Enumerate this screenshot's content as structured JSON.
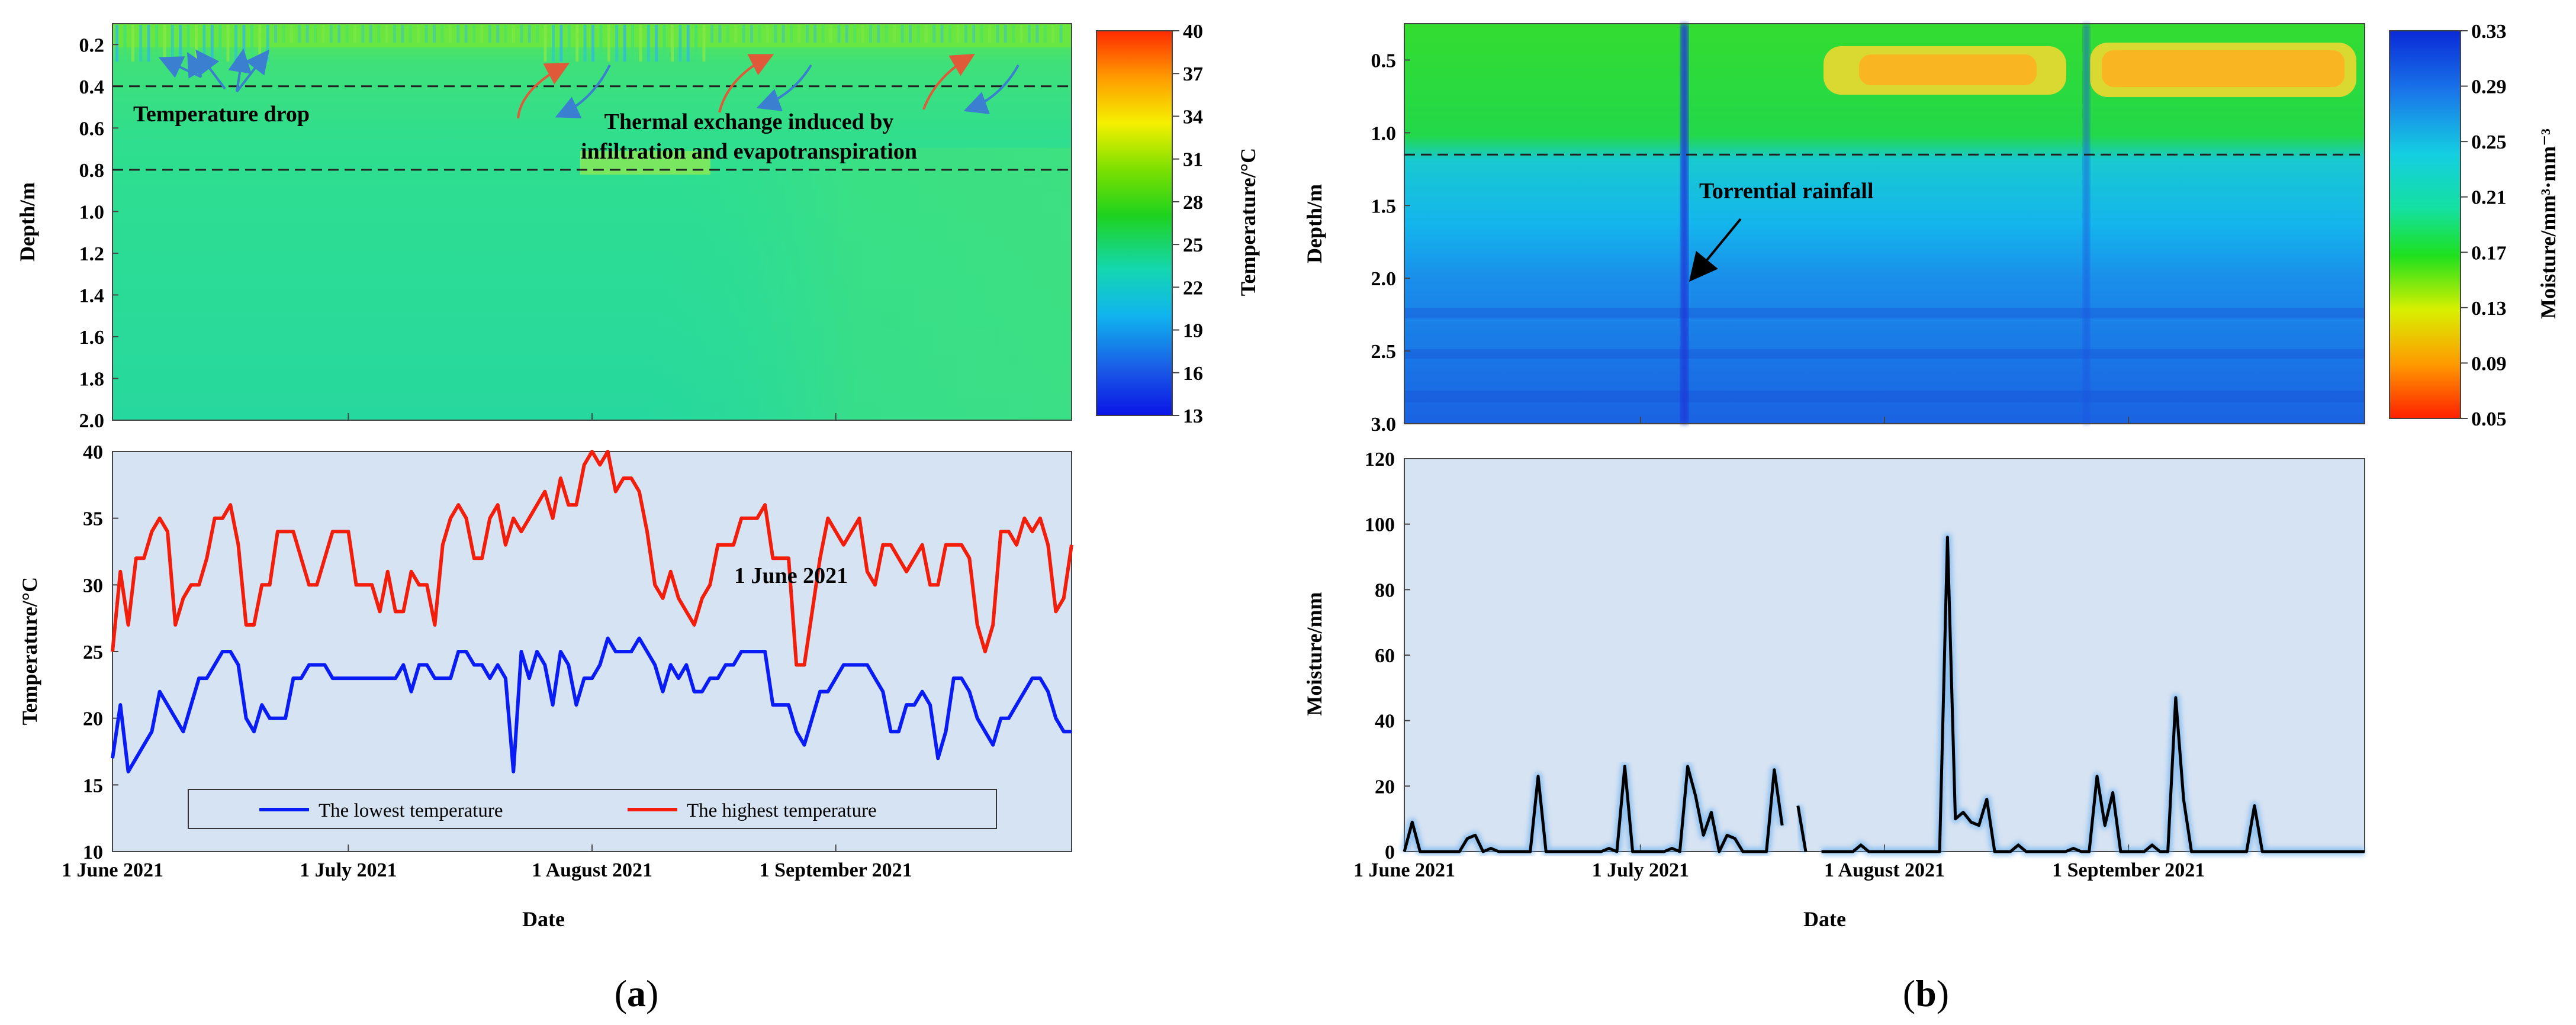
{
  "panel_labels": {
    "a_open": "(",
    "a": "a",
    "a_close": ")",
    "b_open": "(",
    "b": "b",
    "b_close": ")"
  },
  "chart_data": [
    {
      "id": "a-top",
      "type": "heatmap",
      "title": "",
      "xlabel": "",
      "ylabel": "Depth/m",
      "colorbar_label": "Temperature/°C",
      "y_range": [
        0.1,
        2.0
      ],
      "y_ticks": [
        "0.2",
        "0.4",
        "0.6",
        "0.8",
        "1.0",
        "1.2",
        "1.4",
        "1.6",
        "1.8",
        "2.0"
      ],
      "colorbar_ticks": [
        "40",
        "37",
        "34",
        "31",
        "28",
        "25",
        "22",
        "19",
        "16",
        "13"
      ],
      "colorbar_range": [
        13,
        40
      ],
      "dashed_lines_depth": [
        0.4,
        0.8
      ],
      "annotations": [
        "Temperature drop",
        "Thermal exchange induced by",
        "infiltration and evapotranspiration"
      ]
    },
    {
      "id": "a-bottom",
      "type": "line",
      "xlabel": "Date",
      "ylabel": "Temperature/°C",
      "ylim": [
        10,
        40
      ],
      "y_ticks": [
        "40",
        "35",
        "30",
        "25",
        "20",
        "15",
        "10"
      ],
      "x_range_days": [
        0,
        122
      ],
      "x_ticks": [
        {
          "day": 0,
          "label": "1 June 2021"
        },
        {
          "day": 30,
          "label": "1 July 2021"
        },
        {
          "day": 61,
          "label": "1 August 2021"
        },
        {
          "day": 92,
          "label": "1 September 2021"
        }
      ],
      "annotation": "1 June 2021",
      "series": [
        {
          "name": "The lowest temperature",
          "color": "#0a1cf5",
          "values": [
            17,
            21,
            16,
            17,
            18,
            19,
            22,
            21,
            20,
            19,
            21,
            23,
            23,
            24,
            25,
            25,
            24,
            20,
            19,
            21,
            20,
            20,
            20,
            23,
            23,
            24,
            24,
            24,
            23,
            23,
            23,
            23,
            23,
            23,
            23,
            23,
            23,
            24,
            22,
            24,
            24,
            23,
            23,
            23,
            25,
            25,
            24,
            24,
            23,
            24,
            23,
            16,
            25,
            23,
            25,
            24,
            21,
            25,
            24,
            21,
            23,
            23,
            24,
            26,
            25,
            25,
            25,
            26,
            25,
            24,
            22,
            24,
            23,
            24,
            22,
            22,
            23,
            23,
            24,
            24,
            25,
            25,
            25,
            25,
            21,
            21,
            21,
            19,
            18,
            20,
            22,
            22,
            23,
            24,
            24,
            24,
            24,
            23,
            22,
            19,
            19,
            21,
            21,
            22,
            21,
            17,
            19,
            23,
            23,
            22,
            20,
            19,
            18,
            20,
            20,
            21,
            22,
            23,
            23,
            22,
            20,
            19,
            19
          ]
        },
        {
          "name": "The highest temperature",
          "color": "#f21d0a",
          "values": [
            25,
            31,
            27,
            32,
            32,
            34,
            35,
            34,
            27,
            29,
            30,
            30,
            32,
            35,
            35,
            36,
            33,
            27,
            27,
            30,
            30,
            34,
            34,
            34,
            32,
            30,
            30,
            32,
            34,
            34,
            34,
            30,
            30,
            30,
            28,
            31,
            28,
            28,
            31,
            30,
            30,
            27,
            33,
            35,
            36,
            35,
            32,
            32,
            35,
            36,
            33,
            35,
            34,
            35,
            36,
            37,
            35,
            38,
            36,
            36,
            39,
            40,
            39,
            40,
            37,
            38,
            38,
            37,
            34,
            30,
            29,
            31,
            29,
            28,
            27,
            29,
            30,
            33,
            33,
            33,
            35,
            35,
            35,
            36,
            32,
            32,
            32,
            24,
            24,
            28,
            32,
            35,
            34,
            33,
            34,
            35,
            31,
            30,
            33,
            33,
            32,
            31,
            32,
            33,
            30,
            30,
            33,
            33,
            33,
            32,
            27,
            25,
            27,
            34,
            34,
            33,
            35,
            34,
            35,
            33,
            28,
            29,
            33
          ]
        }
      ],
      "legend_position": "bottom-center"
    },
    {
      "id": "b-top",
      "type": "heatmap",
      "ylabel": "Depth/m",
      "colorbar_label": "Moisture/mm³·mm⁻³",
      "y_range": [
        0.25,
        3.0
      ],
      "y_ticks": [
        "0.5",
        "1.0",
        "1.5",
        "2.0",
        "2.5",
        "3.0"
      ],
      "colorbar_ticks": [
        "0.33",
        "0.29",
        "0.25",
        "0.21",
        "0.17",
        "0.13",
        "0.09",
        "0.05"
      ],
      "colorbar_range": [
        0.05,
        0.33
      ],
      "dashed_lines_depth": [
        1.15
      ],
      "annotations": [
        "Torrential rainfall"
      ]
    },
    {
      "id": "b-bottom",
      "type": "line",
      "xlabel": "Date",
      "ylabel": "Moisture/mm",
      "ylim": [
        0,
        120
      ],
      "y_ticks": [
        "120",
        "100",
        "80",
        "60",
        "40",
        "20",
        "0"
      ],
      "x_range_days": [
        0,
        122
      ],
      "x_ticks": [
        {
          "day": 0,
          "label": "1 June 2021"
        },
        {
          "day": 30,
          "label": "1 July 2021"
        },
        {
          "day": 61,
          "label": "1 August 2021"
        },
        {
          "day": 92,
          "label": "1 September 2021"
        }
      ],
      "series": [
        {
          "name": "Moisture",
          "color": "#000000",
          "points": [
            [
              0,
              0
            ],
            [
              1,
              9
            ],
            [
              2,
              0
            ],
            [
              7,
              0
            ],
            [
              8,
              4
            ],
            [
              9,
              5
            ],
            [
              10,
              0
            ],
            [
              11,
              1
            ],
            [
              12,
              0
            ],
            [
              16,
              0
            ],
            [
              17,
              23
            ],
            [
              18,
              0
            ],
            [
              25,
              0
            ],
            [
              26,
              1
            ],
            [
              27,
              0
            ],
            [
              28,
              26
            ],
            [
              29,
              0
            ],
            [
              33,
              0
            ],
            [
              34,
              1
            ],
            [
              35,
              0
            ],
            [
              36,
              26
            ],
            [
              37,
              17
            ],
            [
              38,
              5
            ],
            [
              39,
              12
            ],
            [
              40,
              0
            ],
            [
              41,
              5
            ],
            [
              42,
              4
            ],
            [
              43,
              0
            ],
            [
              46,
              0
            ],
            [
              47,
              25
            ],
            [
              48,
              8
            ],
            [
              49,
              null
            ],
            [
              50,
              14
            ],
            [
              51,
              0
            ],
            [
              52,
              null
            ],
            [
              53,
              0
            ],
            [
              57,
              0
            ],
            [
              58,
              2
            ],
            [
              59,
              0
            ],
            [
              68,
              0
            ],
            [
              69,
              96
            ],
            [
              70,
              10
            ],
            [
              71,
              12
            ],
            [
              72,
              9
            ],
            [
              73,
              8
            ],
            [
              74,
              16
            ],
            [
              75,
              0
            ],
            [
              77,
              0
            ],
            [
              78,
              2
            ],
            [
              79,
              0
            ],
            [
              84,
              0
            ],
            [
              85,
              1
            ],
            [
              86,
              0
            ],
            [
              87,
              0
            ],
            [
              88,
              23
            ],
            [
              89,
              8
            ],
            [
              90,
              18
            ],
            [
              91,
              0
            ],
            [
              94,
              0
            ],
            [
              95,
              2
            ],
            [
              96,
              0
            ],
            [
              97,
              0
            ],
            [
              98,
              47
            ],
            [
              99,
              16
            ],
            [
              100,
              0
            ],
            [
              107,
              0
            ],
            [
              108,
              14
            ],
            [
              109,
              0
            ],
            [
              122,
              0
            ]
          ]
        }
      ]
    }
  ]
}
